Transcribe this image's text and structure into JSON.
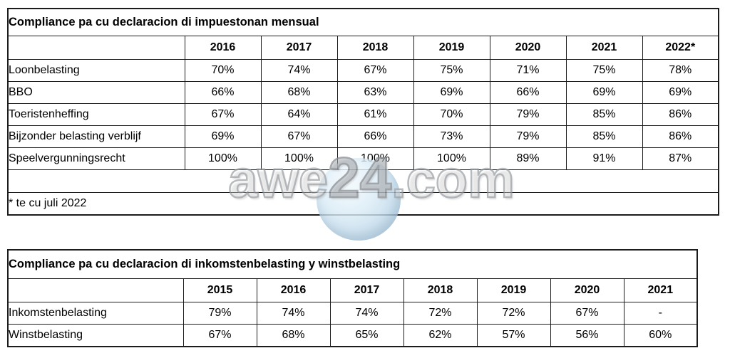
{
  "table1": {
    "title": "Compliance pa cu declaracion di impuestonan mensual",
    "columns": [
      "",
      "2016",
      "2017",
      "2018",
      "2019",
      "2020",
      "2021",
      "2022*"
    ],
    "rows": [
      {
        "label": "Loonbelasting",
        "values": [
          "70%",
          "74%",
          "67%",
          "75%",
          "71%",
          "75%",
          "78%"
        ]
      },
      {
        "label": "BBO",
        "values": [
          "66%",
          "68%",
          "63%",
          "69%",
          "66%",
          "69%",
          "69%"
        ]
      },
      {
        "label": "Toeristenheffing",
        "values": [
          "67%",
          "64%",
          "61%",
          "70%",
          "79%",
          "85%",
          "86%"
        ]
      },
      {
        "label": "Bijzonder belasting verblijf",
        "values": [
          "69%",
          "67%",
          "66%",
          "73%",
          "79%",
          "85%",
          "86%"
        ]
      },
      {
        "label": "Speelvergunningsrecht",
        "values": [
          "100%",
          "100%",
          "100%",
          "100%",
          "89%",
          "91%",
          "87%"
        ]
      }
    ],
    "footnote": "* te cu juli 2022"
  },
  "table2": {
    "title": "Compliance pa cu declaracion di inkomstenbelasting y winstbelasting",
    "columns": [
      "",
      "2015",
      "2016",
      "2017",
      "2018",
      "2019",
      "2020",
      "2021"
    ],
    "rows": [
      {
        "label": "Inkomstenbelasting",
        "values": [
          "79%",
          "74%",
          "74%",
          "72%",
          "72%",
          "67%",
          "-"
        ]
      },
      {
        "label": "Winstbelasting",
        "values": [
          "67%",
          "68%",
          "65%",
          "62%",
          "57%",
          "56%",
          "60%"
        ]
      }
    ]
  },
  "watermark": {
    "part_left": "awe",
    "part_mid": "24",
    "part_right": ".com",
    "sphere_color": "#bdd8ea",
    "text_color": "#94989d"
  },
  "colors": {
    "table_border": "#1b1b1b",
    "background": "#ffffff",
    "text": "#000000"
  }
}
